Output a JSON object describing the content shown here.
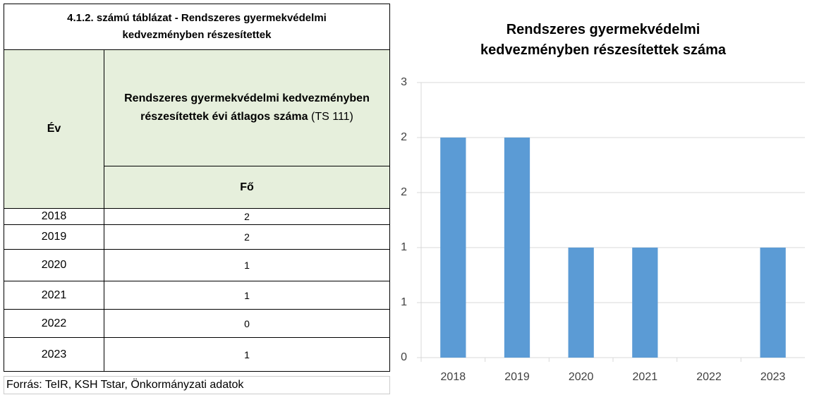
{
  "table": {
    "title": "4.1.2. számú táblázat - Rendszeres gyermekvédelmi kedvezményben részesítettek",
    "col1": "Év",
    "col2_bold": "Rendszeres gyermekvédelmi kedvezményben részesítettek évi átlagos száma",
    "col2_note": "(TS 111)",
    "unit": "Fő",
    "rows": [
      [
        "2018",
        "2"
      ],
      [
        "2019",
        "2"
      ],
      [
        "2020",
        "1"
      ],
      [
        "2021",
        "1"
      ],
      [
        "2022",
        "0"
      ],
      [
        "2023",
        "1"
      ]
    ]
  },
  "source": "Forrás: TeIR, KSH Tstar, Önkormányzati adatok",
  "chart_data": {
    "type": "bar",
    "title": "Rendszeres gyermekvédelmi kedvezményben részesítettek száma",
    "categories": [
      "2018",
      "2019",
      "2020",
      "2021",
      "2022",
      "2023"
    ],
    "values": [
      2,
      2,
      1,
      1,
      0,
      1
    ],
    "color": "#5b9bd5",
    "ylim": [
      0,
      2.5
    ],
    "yticks": [
      0,
      {
        "value": 0.5,
        "label": "1"
      },
      1,
      {
        "value": 1.5,
        "label": "2"
      },
      2,
      {
        "value": 2.5,
        "label": "3"
      }
    ],
    "grid": true
  }
}
